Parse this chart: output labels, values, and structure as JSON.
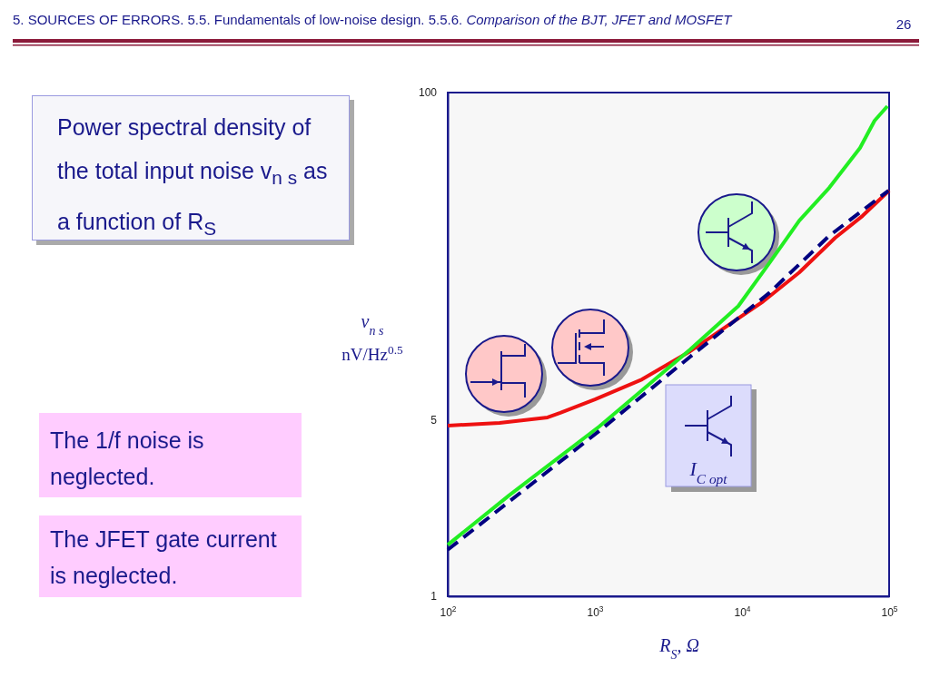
{
  "chart_data": {
    "type": "line",
    "title": "5. SOURCES OF ERRORS. 5.5. Fundamentals of low-noise design. 5.5.6.",
    "subtitle": "Comparison of the BJT, JFET and MOSFET",
    "xlabel": "R$_{S}$, Ω",
    "ylabel": "v$_{n s}$\nnV/Hz$^{0.5}$",
    "log": "xy",
    "xlim": [
      100,
      100000
    ],
    "ylim": [
      1,
      100
    ],
    "xticks": [
      {
        "value": 100,
        "label": "10$^{2}$"
      },
      {
        "value": 1000,
        "label": "10$^{3}$"
      },
      {
        "value": 10000,
        "label": "10$^{4}$"
      },
      {
        "value": 100000,
        "label": "10$^{5}$"
      }
    ],
    "yticks": [
      1,
      5,
      100
    ],
    "series": [
      {
        "color": "#ee1111",
        "x": [
          100,
          225,
          477,
          582,
          1000,
          2090,
          4450,
          7850,
          13900,
          24500,
          43000,
          66000,
          100000
        ],
        "values": [
          4.76,
          4.88,
          5.13,
          5.35,
          6.05,
          7.26,
          9.4,
          11.8,
          14.8,
          19.3,
          26.5,
          32.4,
          40.8
        ]
      },
      {
        "color": "#22ee22",
        "x": [
          100,
          260,
          1070,
          4450,
          9440,
          15300,
          24500,
          39200,
          63400,
          79600,
          97300
        ],
        "values": [
          1.6,
          2.51,
          4.72,
          9.55,
          14.2,
          21,
          31,
          41.9,
          60.3,
          77.3,
          88.3
        ]
      },
      {
        "color": "#000080",
        "line_style": "dashed",
        "x": [
          100,
          1070,
          4450,
          15300,
          39200,
          99000
        ],
        "values": [
          1.53,
          4.53,
          8.94,
          16,
          27,
          40.8
        ]
      }
    ],
    "annotations": [
      "26",
      "Power spectral density of the total input noise v$_{n s}$ as a function of R$_{S}$",
      "The 1/f noise is neglected.",
      "The JFET gate current is neglected.",
      "I$_{C opt}$"
    ]
  }
}
